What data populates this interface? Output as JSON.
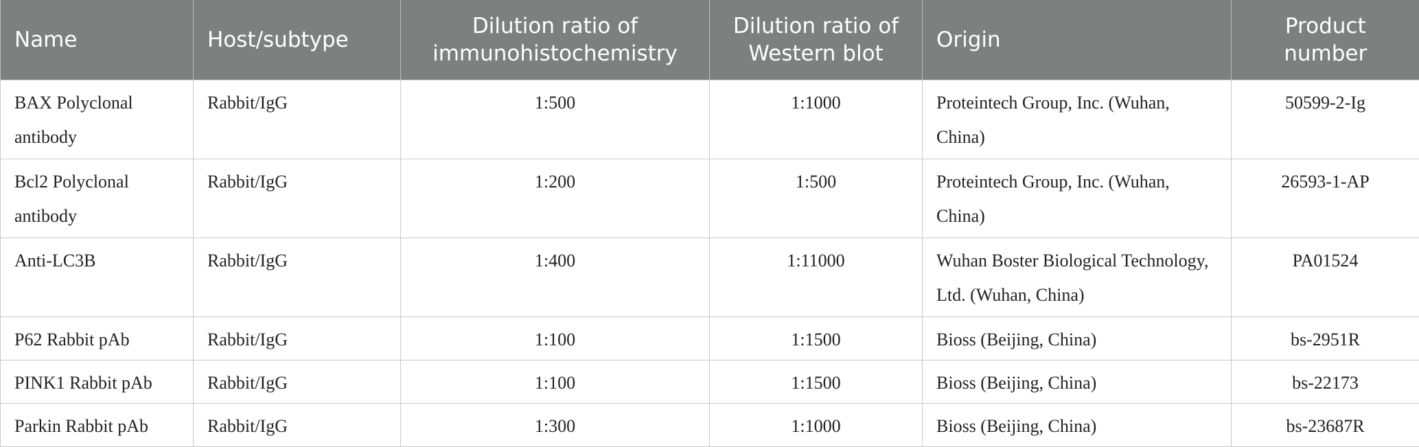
{
  "table": {
    "header": [
      "Name",
      "Host/subtype",
      "Dilution ratio of immunohistochemistry",
      "Dilution ratio of Western blot",
      "Origin",
      "Product number"
    ],
    "rows": [
      [
        "BAX Polyclonal antibody",
        "Rabbit/IgG",
        "1:500",
        "1:1000",
        "Proteintech Group, Inc. (Wuhan, China)",
        "50599-2-Ig"
      ],
      [
        "Bcl2 Polyclonal antibody",
        "Rabbit/IgG",
        "1:200",
        "1:500",
        "Proteintech Group, Inc. (Wuhan, China)",
        "26593-1-AP"
      ],
      [
        "Anti-LC3B",
        "Rabbit/IgG",
        "1:400",
        "1:11000",
        "Wuhan Boster Biological Technology, Ltd. (Wuhan, China)",
        "PA01524"
      ],
      [
        "P62 Rabbit pAb",
        "Rabbit/IgG",
        "1:100",
        "1:1500",
        "Bioss (Beijing, China)",
        "bs-2951R"
      ],
      [
        "PINK1 Rabbit pAb",
        "Rabbit/IgG",
        "1:100",
        "1:1500",
        "Bioss (Beijing, China)",
        "bs-22173"
      ],
      [
        "Parkin Rabbit pAb",
        "Rabbit/IgG",
        "1:300",
        "1:1000",
        "Bioss (Beijing, China)",
        "bs-23687R"
      ]
    ]
  }
}
